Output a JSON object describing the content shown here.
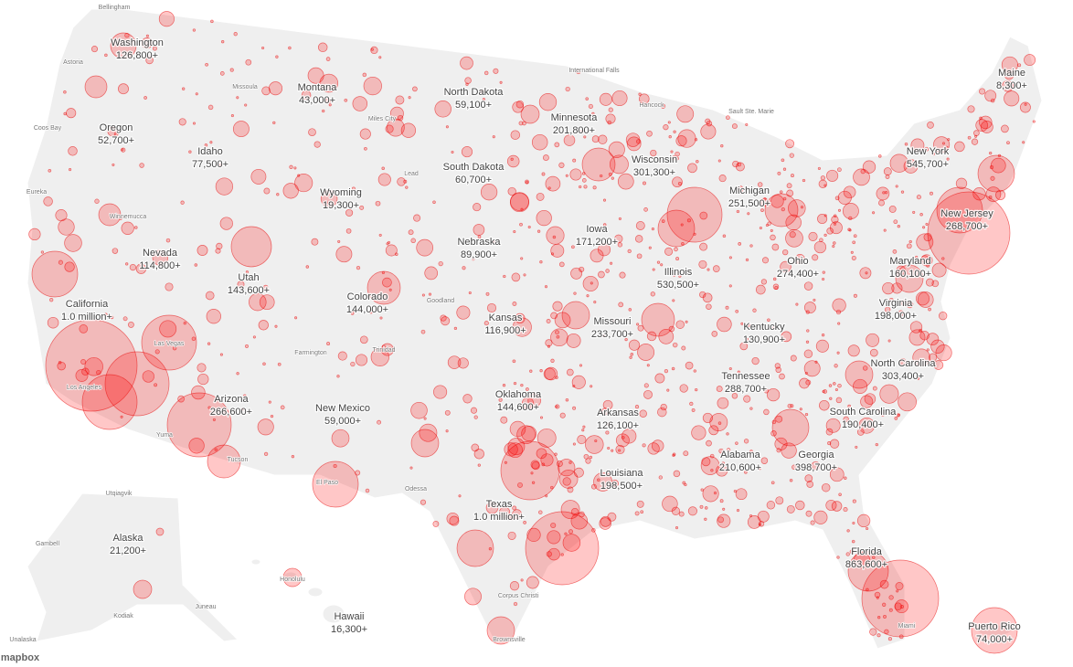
{
  "states": [
    {
      "name": "Washington",
      "cases": "126,800+"
    },
    {
      "name": "Oregon",
      "cases": "52,700+"
    },
    {
      "name": "California",
      "cases": "1.0 million+"
    },
    {
      "name": "Nevada",
      "cases": "114,800+"
    },
    {
      "name": "Idaho",
      "cases": "77,500+"
    },
    {
      "name": "Montana",
      "cases": "43,000+"
    },
    {
      "name": "Wyoming",
      "cases": "19,300+"
    },
    {
      "name": "Utah",
      "cases": "143,600+"
    },
    {
      "name": "Colorado",
      "cases": "144,000+"
    },
    {
      "name": "Arizona",
      "cases": "266,600+"
    },
    {
      "name": "New Mexico",
      "cases": "59,000+"
    },
    {
      "name": "North Dakota",
      "cases": "59,100+"
    },
    {
      "name": "South Dakota",
      "cases": "60,700+"
    },
    {
      "name": "Nebraska",
      "cases": "89,900+"
    },
    {
      "name": "Kansas",
      "cases": "116,900+"
    },
    {
      "name": "Oklahoma",
      "cases": "144,600+"
    },
    {
      "name": "Texas",
      "cases": "1.0 million+"
    },
    {
      "name": "Minnesota",
      "cases": "201,800+"
    },
    {
      "name": "Iowa",
      "cases": "171,200+"
    },
    {
      "name": "Missouri",
      "cases": "233,700+"
    },
    {
      "name": "Arkansas",
      "cases": "126,100+"
    },
    {
      "name": "Louisiana",
      "cases": "198,500+"
    },
    {
      "name": "Wisconsin",
      "cases": "301,300+"
    },
    {
      "name": "Illinois",
      "cases": "530,500+"
    },
    {
      "name": "Michigan",
      "cases": "251,500+"
    },
    {
      "name": "Ohio",
      "cases": "274,400+"
    },
    {
      "name": "Kentucky",
      "cases": "130,900+"
    },
    {
      "name": "Tennessee",
      "cases": "288,700+"
    },
    {
      "name": "Alabama",
      "cases": "210,600+"
    },
    {
      "name": "Georgia",
      "cases": "398,700+"
    },
    {
      "name": "Florida",
      "cases": "863,600+"
    },
    {
      "name": "South Carolina",
      "cases": "190,400+"
    },
    {
      "name": "North Carolina",
      "cases": "303,400+"
    },
    {
      "name": "Virginia",
      "cases": "198,000+"
    },
    {
      "name": "Maryland",
      "cases": "160,100+"
    },
    {
      "name": "New Jersey",
      "cases": "268,700+"
    },
    {
      "name": "New York",
      "cases": "545,700+"
    },
    {
      "name": "Maine",
      "cases": "8,300+"
    },
    {
      "name": "Alaska",
      "cases": "21,200+"
    },
    {
      "name": "Hawaii",
      "cases": "16,300+"
    },
    {
      "name": "Puerto Rico",
      "cases": "74,000+"
    }
  ],
  "places": [
    "Bellingham",
    "Astoria",
    "Coos Bay",
    "Eureka",
    "Winnemucca",
    "Missoula",
    "Miles City",
    "International Falls",
    "Hancock",
    "Sault Ste. Marie",
    "Las Vegas",
    "Los Angeles",
    "Yuma",
    "Tucson",
    "El Paso",
    "Farmington",
    "Trinidad",
    "Goodland",
    "Lead",
    "Odessa",
    "Corpus Christi",
    "Brownsville",
    "Miami",
    "Honolulu",
    "Juneau",
    "Kodiak",
    "Gambell",
    "Unalaska",
    "Utqiagvik"
  ],
  "attribution": "mapbox"
}
